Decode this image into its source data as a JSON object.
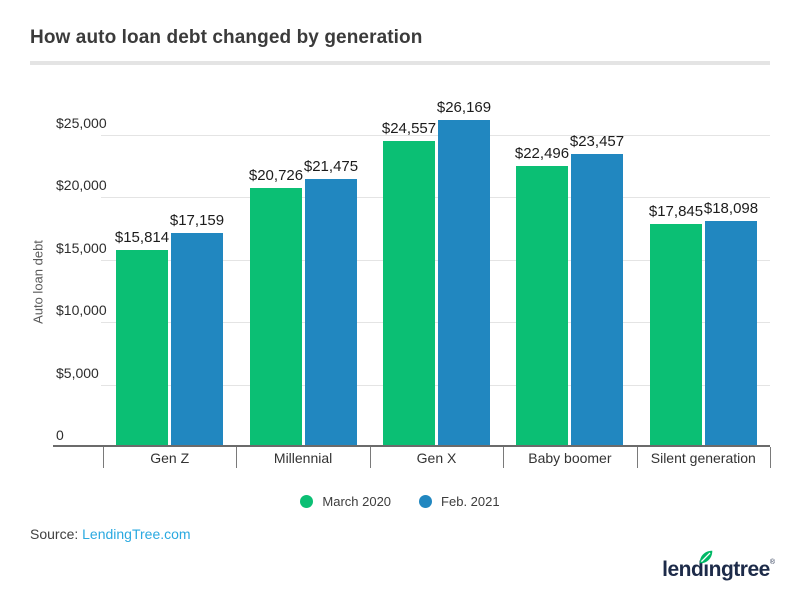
{
  "header": {
    "title": "How auto loan debt changed by generation"
  },
  "chart_data": {
    "type": "bar",
    "title": "How auto loan debt changed by generation",
    "categories": [
      "Gen Z",
      "Millennial",
      "Gen X",
      "Baby boomer",
      "Silent generation"
    ],
    "series": [
      {
        "name": "March 2020",
        "color": "#0bbf74",
        "values": [
          15814,
          20726,
          24557,
          22496,
          17845
        ],
        "labels": [
          "$15,814",
          "$20,726",
          "$24,557",
          "$22,496",
          "$17,845"
        ]
      },
      {
        "name": "Feb. 2021",
        "color": "#2187c0",
        "values": [
          17159,
          21475,
          26169,
          23457,
          18098
        ],
        "labels": [
          "$17,159",
          "$21,475",
          "$26,169",
          "$23,457",
          "$18,098"
        ]
      }
    ],
    "xlabel": "",
    "ylabel": "Auto loan debt",
    "y_ticks": [
      {
        "value": 0,
        "label": "0"
      },
      {
        "value": 5000,
        "label": "$5,000"
      },
      {
        "value": 10000,
        "label": "$10,000"
      },
      {
        "value": 15000,
        "label": "$15,000"
      },
      {
        "value": 20000,
        "label": "$20,000"
      },
      {
        "value": 25000,
        "label": "$25,000"
      }
    ],
    "ylim": [
      0,
      27000
    ],
    "grid": true,
    "legend_position": "bottom-center"
  },
  "legend": {
    "items": [
      {
        "label": "March 2020",
        "color": "#0bbf74"
      },
      {
        "label": "Feb. 2021",
        "color": "#2187c0"
      }
    ]
  },
  "source": {
    "prefix": "Source: ",
    "link": "LendingTree.com"
  },
  "logo": {
    "text": "lendingtree",
    "registered": "®"
  },
  "colors": {
    "bar_green": "#0bbf74",
    "bar_blue": "#2187c0",
    "gridline": "#e4e4e4",
    "axis": "#6b6b6b",
    "link_blue": "#2aa9e0",
    "logo_navy": "#1d2b49",
    "leaf_green": "#00b865"
  }
}
